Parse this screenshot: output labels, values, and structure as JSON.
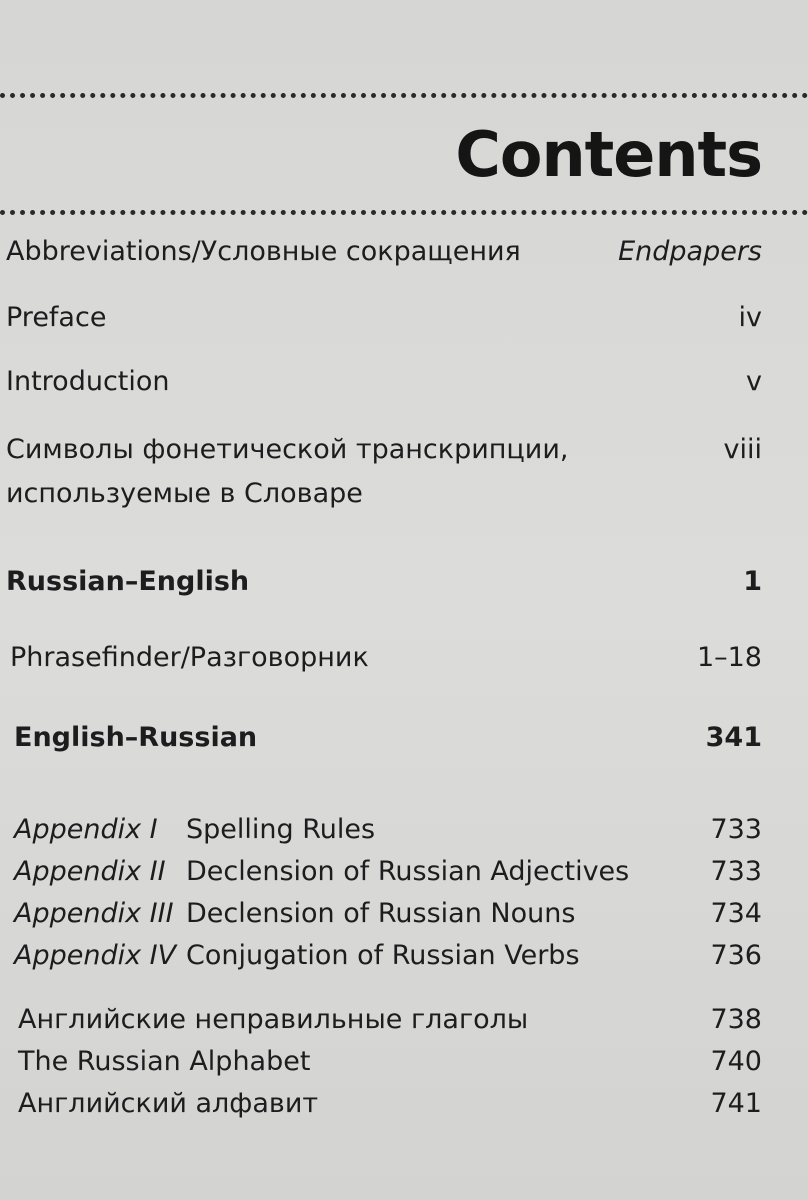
{
  "heading": "Contents",
  "entries": [
    {
      "title": "Abbreviations/Условные сокращения",
      "page": "Endpapers"
    },
    {
      "title": "Preface",
      "page": "iv"
    },
    {
      "title": "Introduction",
      "page": "v"
    },
    {
      "title_line1": "Символы фонетической транскрипции,",
      "title_line2": "используемые в Словаре",
      "page": "viii"
    },
    {
      "title": "Russian–English",
      "page": "1"
    },
    {
      "title": "Phrasefinder/Разговорник",
      "page": "1–18"
    },
    {
      "title": "English–Russian",
      "page": "341"
    }
  ],
  "appendices": [
    {
      "label": "Appendix I",
      "title": "Spelling Rules",
      "page": "733"
    },
    {
      "label": "Appendix II",
      "title": "Declension of Russian Adjectives",
      "page": "733"
    },
    {
      "label": "Appendix III",
      "title": "Declension of Russian Nouns",
      "page": "734"
    },
    {
      "label": "Appendix IV",
      "title": "Conjugation of Russian Verbs",
      "page": "736"
    }
  ],
  "extras": [
    {
      "title": "Английские неправильные глаголы",
      "page": "738"
    },
    {
      "title": "The Russian Alphabet",
      "page": "740"
    },
    {
      "title": "Английский алфавит",
      "page": "741"
    }
  ]
}
